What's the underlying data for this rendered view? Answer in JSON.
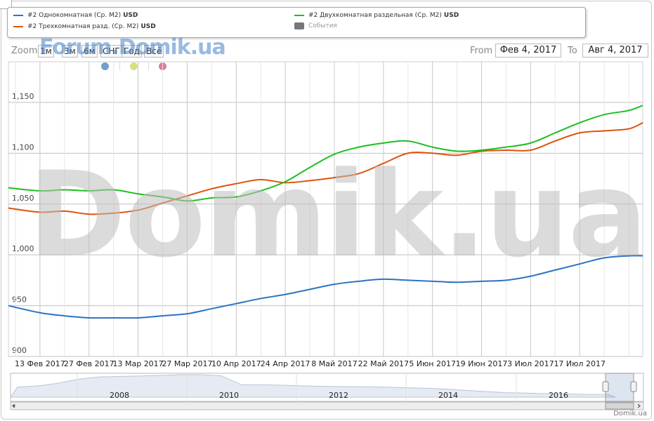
{
  "legend": {
    "items": [
      {
        "label": "#2 Однокомнатная (Ср. М2)",
        "unit": "USD",
        "color": "#2b73c2",
        "kind": "line"
      },
      {
        "label": "#2 Трехкомнатная разд. (Ср. М2)",
        "unit": "USD",
        "color": "#e0520c",
        "kind": "line"
      },
      {
        "label": "#2 Двухкомнатная раздельная (Ср. М2)",
        "unit": "USD",
        "color": "#1fbd21",
        "kind": "line"
      },
      {
        "label": "События",
        "unit": "",
        "color": "#777777",
        "kind": "box"
      }
    ]
  },
  "toolbar": {
    "zoom_label": "Zoom",
    "zoom_buttons": [
      "1м",
      "3м",
      "6м",
      "СНГ",
      "Год",
      "Всё"
    ],
    "from_label": "From",
    "from_value": "Фев 4, 2017",
    "to_label": "To",
    "to_value": "Авг 4, 2017",
    "event_dot_colors": [
      "#6fa0d0",
      "#d8e080",
      "#de7aa0"
    ]
  },
  "watermarks": {
    "small": "Forum.Domik.ua",
    "large": "Domik.ua"
  },
  "credit": "Domik.ua",
  "chart_data": {
    "type": "line",
    "x_tick_labels": [
      "13 Фев 2017",
      "27 Фев 2017",
      "13 Мар 2017",
      "27 Мар 2017",
      "10 Апр 2017",
      "24 Апр 2017",
      "8 Май 2017",
      "22 Май 2017",
      "5 Июн 2017",
      "19 Июн 2017",
      "3 Июл 2017",
      "17 Июл 2017"
    ],
    "y_ticks": [
      900,
      950,
      1000,
      1050,
      1100,
      1150
    ],
    "y_tick_labels": [
      "900",
      "950",
      "1,000",
      "1,050",
      "1,100",
      "1,150"
    ],
    "ylim": [
      900,
      1190
    ],
    "x_dates": [
      "2017-02-06",
      "2017-02-13",
      "2017-02-20",
      "2017-02-27",
      "2017-03-06",
      "2017-03-13",
      "2017-03-20",
      "2017-03-27",
      "2017-04-03",
      "2017-04-10",
      "2017-04-17",
      "2017-04-24",
      "2017-05-01",
      "2017-05-08",
      "2017-05-15",
      "2017-05-22",
      "2017-05-29",
      "2017-06-05",
      "2017-06-12",
      "2017-06-19",
      "2017-06-26",
      "2017-07-03",
      "2017-07-10",
      "2017-07-17",
      "2017-07-24",
      "2017-07-31",
      "2017-08-04"
    ],
    "series": [
      {
        "name": "#2 Однокомнатная (Ср. М2)",
        "color": "#2b73c2",
        "values": [
          950,
          943,
          940,
          938,
          938,
          938,
          940,
          942,
          947,
          952,
          957,
          961,
          966,
          971,
          974,
          976,
          975,
          974,
          973,
          974,
          975,
          979,
          985,
          991,
          997,
          999,
          999
        ]
      },
      {
        "name": "#2 Трехкомнатная разд. (Ср. М2)",
        "color": "#e0520c",
        "values": [
          1046,
          1042,
          1043,
          1040,
          1041,
          1044,
          1051,
          1058,
          1065,
          1070,
          1074,
          1071,
          1073,
          1076,
          1080,
          1090,
          1100,
          1100,
          1098,
          1102,
          1103,
          1103,
          1112,
          1120,
          1122,
          1124,
          1130
        ]
      },
      {
        "name": "#2 Двухкомнатная раздельная (Ср. М2)",
        "color": "#1fbd21",
        "values": [
          1066,
          1063,
          1064,
          1063,
          1064,
          1060,
          1057,
          1053,
          1056,
          1057,
          1063,
          1072,
          1086,
          1099,
          1106,
          1110,
          1112,
          1106,
          1102,
          1103,
          1106,
          1110,
          1120,
          1130,
          1138,
          1142,
          1147
        ]
      }
    ],
    "navigator": {
      "year_labels": [
        "2008",
        "2010",
        "2012",
        "2014",
        "2016"
      ],
      "profile": [
        0.45,
        0.5,
        0.62,
        0.8,
        0.9,
        0.92,
        0.94,
        0.97,
        1.0,
        1.0,
        0.95,
        0.55,
        0.55,
        0.53,
        0.5,
        0.48,
        0.47,
        0.46,
        0.45,
        0.42,
        0.4,
        0.36,
        0.3,
        0.25,
        0.2,
        0.18,
        0.15,
        0.14,
        0.12,
        0.12
      ]
    }
  }
}
